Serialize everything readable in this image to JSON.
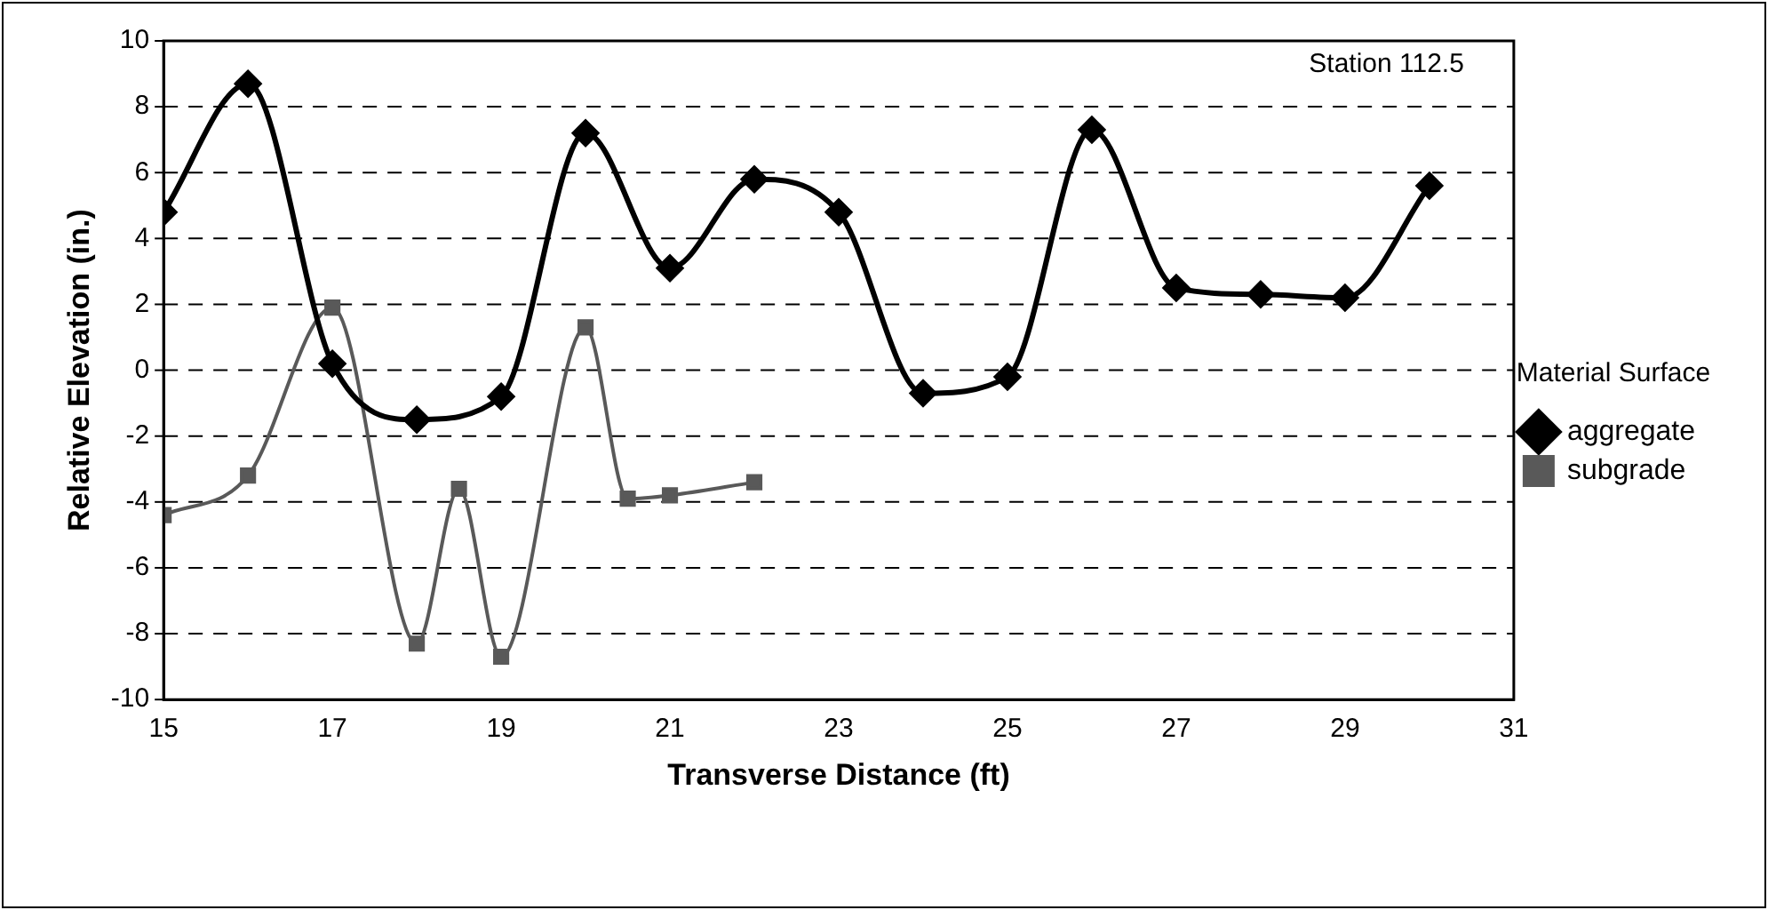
{
  "chart_data": {
    "type": "line",
    "xlabel": "Transverse Distance (ft)",
    "ylabel": "Relative Elevation (in.)",
    "legend_title": "Material Surface",
    "annotations": [
      "Station 112.5"
    ],
    "xlim": [
      15,
      31
    ],
    "xticks": [
      15,
      17,
      19,
      21,
      23,
      25,
      27,
      29,
      31
    ],
    "ylim": [
      -10,
      10
    ],
    "yticks": [
      -10,
      -8,
      -6,
      -4,
      -2,
      0,
      2,
      4,
      6,
      8,
      10
    ],
    "grid": "y",
    "legend": "right",
    "series": [
      {
        "name": "aggregate",
        "color": "#000000",
        "marker": "diamond",
        "x": [
          15,
          16,
          17,
          18,
          19,
          20,
          21,
          22,
          23,
          24,
          25,
          26,
          27,
          28,
          29,
          30
        ],
        "values": [
          4.8,
          8.7,
          0.2,
          -1.5,
          -0.8,
          7.2,
          3.1,
          5.8,
          4.8,
          -0.7,
          -0.2,
          7.3,
          2.5,
          2.3,
          2.2,
          5.6
        ]
      },
      {
        "name": "subgrade",
        "color": "#595959",
        "marker": "square",
        "x": [
          15,
          16,
          17,
          18,
          18.5,
          19,
          20,
          20.5,
          21,
          22
        ],
        "values": [
          -4.4,
          -3.2,
          1.9,
          -8.3,
          -3.6,
          -8.7,
          1.3,
          -3.9,
          -3.8,
          -3.4
        ]
      }
    ]
  }
}
